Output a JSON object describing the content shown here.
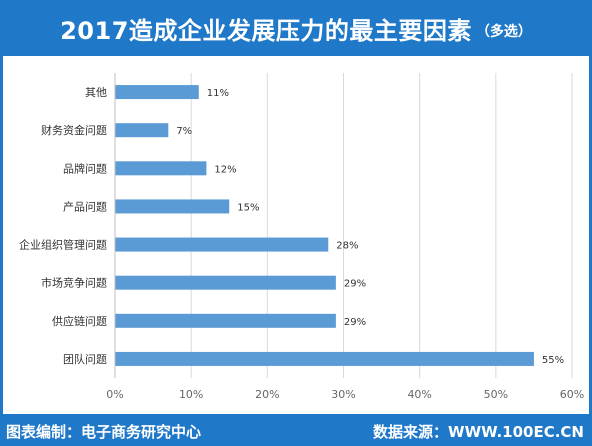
{
  "header": {
    "title": "2017造成企业发展压力的最主要因素",
    "subtitle": "（多选）"
  },
  "footer": {
    "source_left": "图表编制：电子商务研究中心",
    "source_right": "数据来源：WWW.100EC.CN"
  },
  "colors": {
    "brand": "#1f78c8",
    "bar": "#5b9bd5"
  },
  "chart_data": {
    "type": "bar",
    "orientation": "horizontal",
    "categories": [
      "其他",
      "财务资金问题",
      "品牌问题",
      "产品问题",
      "企业组织管理问题",
      "市场竞争问题",
      "供应链问题",
      "团队问题"
    ],
    "values": [
      11,
      7,
      12,
      15,
      28,
      29,
      29,
      55
    ],
    "value_labels": [
      "11%",
      "7%",
      "12%",
      "15%",
      "28%",
      "29%",
      "29%",
      "55%"
    ],
    "xlim": [
      0,
      60
    ],
    "xticks": [
      0,
      10,
      20,
      30,
      40,
      50,
      60
    ],
    "xtick_labels": [
      "0%",
      "10%",
      "20%",
      "30%",
      "40%",
      "50%",
      "60%"
    ],
    "grid": true
  }
}
